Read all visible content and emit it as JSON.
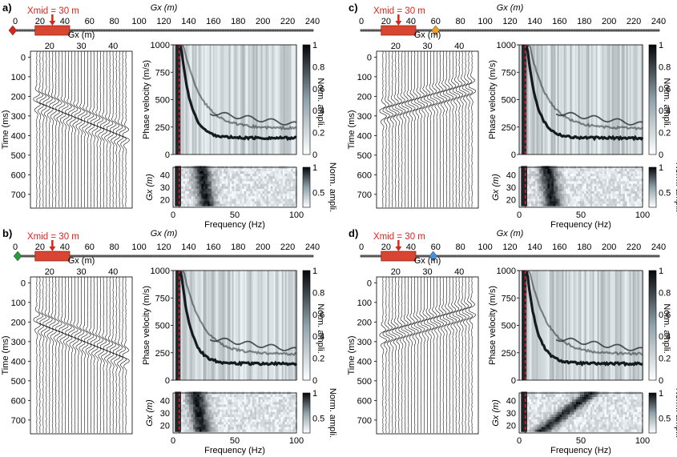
{
  "colors": {
    "red": "#d9261c",
    "orange": "#f0a020",
    "green": "#2a9a3a",
    "blue": "#4a8fd8",
    "cable": "#7b7b7b"
  },
  "figure": {
    "panels": [
      {
        "label": "a)",
        "xmid_label": "Xmid = 30 m",
        "source_color": "red",
        "source_pos": -2
      },
      {
        "label": "c)",
        "xmid_label": "Xmid = 30 m",
        "source_color": "orange",
        "source_pos": 60
      },
      {
        "label": "b)",
        "xmid_label": "Xmid = 30 m",
        "source_color": "green",
        "source_pos": 2
      },
      {
        "label": "d)",
        "xmid_label": "Xmid = 30 m",
        "source_color": "blue",
        "source_pos": 58
      }
    ],
    "cable": {
      "axis_label": "Gx (m)",
      "ticks": [
        "0",
        "20",
        "40",
        "60",
        "80",
        "100",
        "120",
        "140",
        "160",
        "180",
        "200",
        "220",
        "240"
      ],
      "window_m": [
        16,
        44
      ]
    },
    "gather": {
      "x_label": "Gx (m)",
      "x_ticks": [
        "20",
        "30",
        "40"
      ],
      "y_label": "Time (ms)",
      "y_ticks": [
        "0",
        "100",
        "200",
        "300",
        "400",
        "500",
        "600",
        "700"
      ]
    },
    "dispersion": {
      "y_label": "Phase velocity (m/s)",
      "y_ticks": [
        "0",
        "250",
        "500",
        "750",
        "1000"
      ],
      "colorbar_ticks": [
        "0",
        "0.2",
        "0.4",
        "0.6",
        "0.8",
        "1"
      ],
      "colorbar_label": "Norm. ampli."
    },
    "gx_image": {
      "y_label": "Gx (m)",
      "y_ticks": [
        "20",
        "30",
        "40"
      ],
      "colorbar_ticks": [
        "0.5",
        "1"
      ],
      "colorbar_label": "Norm. ampli."
    },
    "frequency": {
      "x_label": "Frequency (Hz)",
      "x_ticks": [
        "0",
        "50",
        "100"
      ],
      "cutoff_hz": 5
    }
  }
}
